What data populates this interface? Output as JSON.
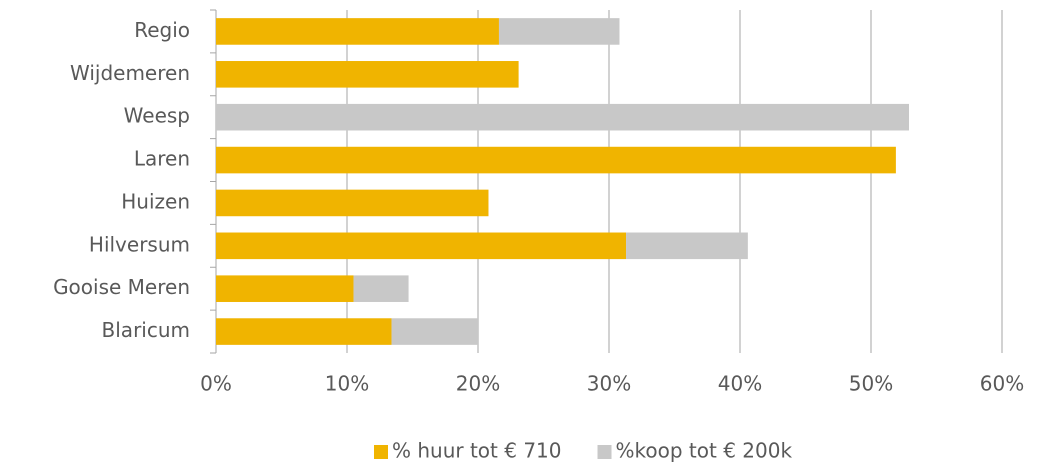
{
  "chart_data": {
    "type": "stacked_barh",
    "categories": [
      "Regio",
      "Wijdemeren",
      "Weesp",
      "Laren",
      "Huizen",
      "Hilversum",
      "Gooise Meren",
      "Blaricum"
    ],
    "series": [
      {
        "name": "% huur tot € 710",
        "color": "#f0b400",
        "values": [
          21.6,
          23.1,
          0,
          51.9,
          20.8,
          31.3,
          10.5,
          13.4
        ]
      },
      {
        "name": "%koop tot € 200k",
        "color": "#c8c8c8",
        "values": [
          9.2,
          0,
          52.9,
          0,
          0,
          9.3,
          4.2,
          6.6
        ]
      }
    ],
    "xlim": [
      0,
      60
    ],
    "xticks": [
      {
        "value": 0,
        "label": "0%"
      },
      {
        "value": 10,
        "label": "10%"
      },
      {
        "value": 20,
        "label": "20%"
      },
      {
        "value": 30,
        "label": "30%"
      },
      {
        "value": 40,
        "label": "40%"
      },
      {
        "value": 50,
        "label": "50%"
      },
      {
        "value": 60,
        "label": "60%"
      }
    ],
    "grid": true,
    "legend": "bottom"
  }
}
